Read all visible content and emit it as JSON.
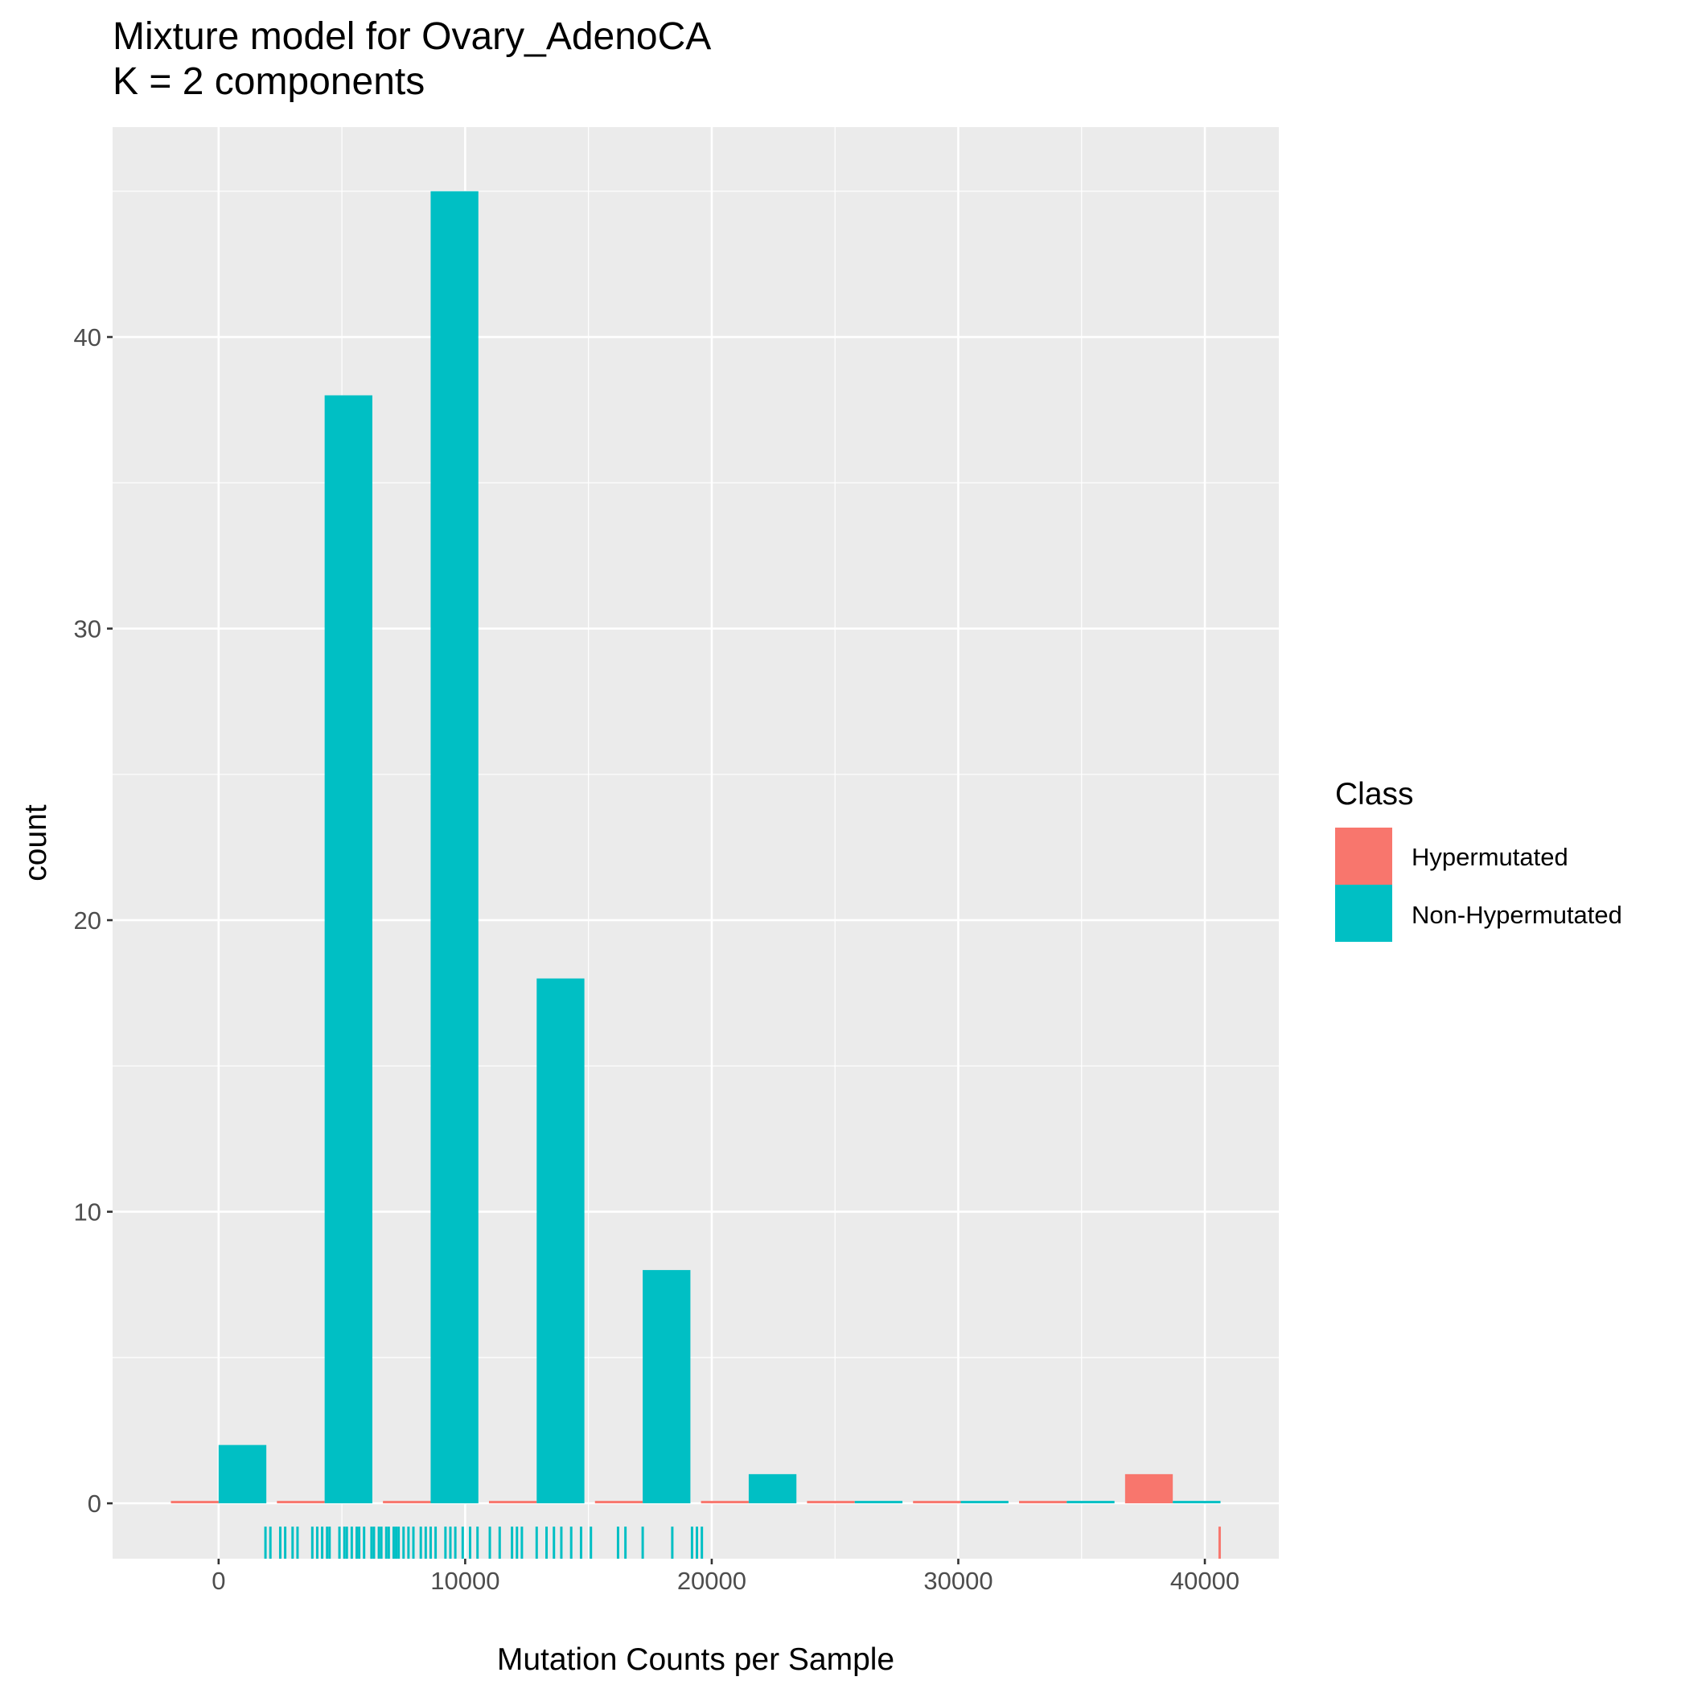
{
  "chart_data": {
    "type": "bar",
    "title": "Mixture model for Ovary_AdenoCA",
    "subtitle": "K = 2 components",
    "xlabel": "Mutation Counts per Sample",
    "ylabel": "count",
    "xlim": [
      -4300,
      43000
    ],
    "ylim": [
      -1.9,
      47.2
    ],
    "x_ticks": [
      0,
      10000,
      20000,
      30000,
      40000
    ],
    "x_tick_labels": [
      "0",
      "10000",
      "20000",
      "30000",
      "40000"
    ],
    "y_ticks": [
      0,
      10,
      20,
      30,
      40
    ],
    "y_tick_labels": [
      "0",
      "10",
      "20",
      "30",
      "40"
    ],
    "bin_width": 4300,
    "bin_centers": [
      0,
      4300,
      8600,
      12900,
      17200,
      21500,
      25800,
      30100,
      34400,
      38700
    ],
    "series": [
      {
        "name": "Hypermutated",
        "color": "#F8766D",
        "values": [
          0,
          0,
          0,
          0,
          0,
          0,
          0,
          0,
          0,
          1
        ]
      },
      {
        "name": "Non-Hypermutated",
        "color": "#00BFC4",
        "values": [
          2,
          38,
          45,
          18,
          8,
          1,
          0,
          0,
          0,
          0
        ]
      }
    ],
    "rug": {
      "Non-Hypermutated": [
        1900,
        2100,
        2500,
        2700,
        3000,
        3200,
        3800,
        4000,
        4200,
        4400,
        4500,
        4900,
        5100,
        5200,
        5400,
        5600,
        5700,
        5900,
        6200,
        6300,
        6500,
        6600,
        6800,
        6900,
        7100,
        7200,
        7300,
        7500,
        7700,
        7900,
        8200,
        8400,
        8600,
        8800,
        9200,
        9400,
        9600,
        9900,
        10200,
        10500,
        11000,
        11400,
        11900,
        12100,
        12300,
        12900,
        13300,
        13600,
        13900,
        14300,
        14700,
        15100,
        16200,
        16500,
        17200,
        18400,
        19200,
        19400,
        19600
      ],
      "Hypermutated": [
        40600
      ]
    },
    "grid": true,
    "legend": {
      "title": "Class",
      "position": "right",
      "items": [
        "Hypermutated",
        "Non-Hypermutated"
      ]
    }
  }
}
